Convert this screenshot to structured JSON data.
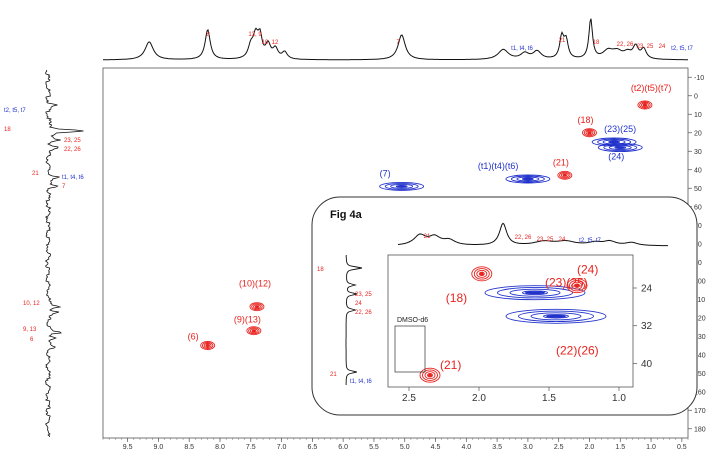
{
  "chart_data": [
    {
      "type": "heatmap",
      "subtype": "2D HSQC NMR spectrum",
      "colors": {
        "positive": "#e8231f",
        "negative": "#2233cc",
        "projection": "#111111",
        "frame": "#555555"
      },
      "x": {
        "range": [
          9.9,
          0.4
        ],
        "ticks": [
          "9.5",
          "9.0",
          "8.5",
          "8.0",
          "7.5",
          "7.0",
          "6.5",
          "6.0",
          "5.5",
          "5.0",
          "4.5",
          "4.0",
          "3.5",
          "3.0",
          "2.5",
          "2.0",
          "1.5",
          "1.0",
          "0.5"
        ]
      },
      "y": {
        "range": [
          -15,
          185
        ],
        "ticks": [
          "-10",
          "0",
          "10",
          "20",
          "30",
          "40",
          "50",
          "60",
          "70",
          "80",
          "90",
          "100",
          "110",
          "120",
          "130",
          "140",
          "150",
          "160",
          "170",
          "180"
        ]
      },
      "grid": false,
      "cross_peaks": [
        {
          "label": "(6)",
          "x": 8.2,
          "y": 135,
          "color": "red"
        },
        {
          "label": "(10)(12)",
          "x": 7.4,
          "y": 114,
          "color": "red"
        },
        {
          "label": "(9)(13)",
          "x": 7.45,
          "y": 127,
          "color": "red"
        },
        {
          "label": "(7)",
          "x": 5.05,
          "y": 49,
          "color": "blue"
        },
        {
          "label": "(t1)(t4)(t6)",
          "x": 3.0,
          "y": 45,
          "color": "blue"
        },
        {
          "label": "(21)",
          "x": 2.4,
          "y": 43,
          "color": "red"
        },
        {
          "label": "(18)",
          "x": 2.0,
          "y": 20,
          "color": "red"
        },
        {
          "label": "(24)",
          "x": 1.5,
          "y": 28,
          "color": "blue"
        },
        {
          "label": "(23)(25)",
          "x": 1.6,
          "y": 25,
          "color": "blue"
        },
        {
          "label": "(t2)(t5)(t7)",
          "x": 1.1,
          "y": 5,
          "color": "red"
        }
      ],
      "projection_x_labels": [
        "8",
        "13, 9",
        "10, 12",
        "7",
        "t1, t4, t6",
        "21",
        "18",
        "22, 26",
        "23, 25",
        "24",
        "t2, t5, t7"
      ],
      "projection_y_labels": [
        {
          "text": "t2, t5, t7",
          "color": "blue"
        },
        {
          "text": "18",
          "color": "red"
        },
        {
          "text": "23, 25",
          "color": "red"
        },
        {
          "text": "22, 26",
          "color": "red"
        },
        {
          "text": "21",
          "color": "red"
        },
        {
          "text": "t1, t4, t6",
          "color": "blue"
        },
        {
          "text": "7",
          "color": "red"
        },
        {
          "text": "10, 12",
          "color": "red"
        },
        {
          "text": "9, 13",
          "color": "red"
        },
        {
          "text": "6",
          "color": "red"
        }
      ]
    },
    {
      "type": "heatmap",
      "subtype": "2D HSQC NMR inset",
      "title": "Fig 4a",
      "x": {
        "range": [
          2.65,
          0.9
        ],
        "ticks": [
          "2.5",
          "2.0",
          "1.5",
          "1.0"
        ]
      },
      "y": {
        "range": [
          17,
          45
        ],
        "ticks": [
          "24",
          "32",
          "40"
        ]
      },
      "grid": false,
      "cross_peaks": [
        {
          "label": "(18)",
          "x": 1.98,
          "y": 21,
          "color": "red"
        },
        {
          "label": "(23)(25)",
          "x": 1.6,
          "y": 25,
          "color": "blue"
        },
        {
          "label": "(24)",
          "x": 1.3,
          "y": 23.5,
          "color": "red"
        },
        {
          "label": "(22)(26)",
          "x": 1.45,
          "y": 30,
          "color": "blue"
        },
        {
          "label": "(21)",
          "x": 2.35,
          "y": 42.5,
          "color": "red"
        }
      ],
      "annotation": "DMSO-d6",
      "projection_x_labels": [
        "21",
        "22, 26",
        "23, 25",
        "24",
        "t2, t5, t7"
      ],
      "projection_y_labels": [
        {
          "text": "18",
          "color": "red"
        },
        {
          "text": "23, 25",
          "color": "red"
        },
        {
          "text": "24",
          "color": "red"
        },
        {
          "text": "22, 26",
          "color": "red"
        },
        {
          "text": "21",
          "color": "red"
        },
        {
          "text": "t1, t4, t6",
          "color": "blue"
        }
      ]
    }
  ]
}
